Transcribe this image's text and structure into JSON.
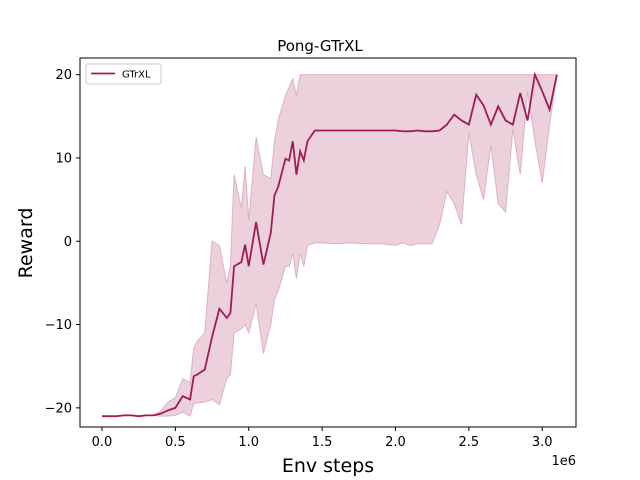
{
  "chart_data": {
    "type": "line",
    "title": "Pong-GTrXL",
    "xlabel": "Env steps",
    "ylabel": "Reward",
    "x_offset_label": "1e6",
    "xlim": [
      -0.15,
      3.23
    ],
    "ylim": [
      -22.3,
      22.0
    ],
    "xticks": [
      0.0,
      0.5,
      1.0,
      1.5,
      2.0,
      2.5,
      3.0
    ],
    "xtick_labels": [
      "0.0",
      "0.5",
      "1.0",
      "1.5",
      "2.0",
      "2.5",
      "3.0"
    ],
    "yticks": [
      -20,
      -10,
      0,
      10,
      20
    ],
    "ytick_labels": [
      "−20",
      "−10",
      "0",
      "10",
      "20"
    ],
    "grid": false,
    "legend_position": "top-left",
    "series": [
      {
        "name": "GTrXL",
        "color": "#a01a58",
        "band_color": "#d9a3bc",
        "x": [
          0.0,
          0.05,
          0.1,
          0.15,
          0.2,
          0.25,
          0.3,
          0.35,
          0.4,
          0.45,
          0.5,
          0.55,
          0.6,
          0.625,
          0.65,
          0.7,
          0.75,
          0.8,
          0.85,
          0.875,
          0.9,
          0.95,
          0.975,
          1.0,
          1.05,
          1.1,
          1.15,
          1.175,
          1.2,
          1.25,
          1.275,
          1.3,
          1.325,
          1.35,
          1.375,
          1.4,
          1.45,
          1.5,
          1.6,
          1.7,
          1.8,
          1.9,
          2.0,
          2.05,
          2.1,
          2.15,
          2.2,
          2.25,
          2.3,
          2.35,
          2.4,
          2.45,
          2.5,
          2.55,
          2.6,
          2.65,
          2.7,
          2.75,
          2.8,
          2.85,
          2.9,
          2.95,
          3.0,
          3.05,
          3.1
        ],
        "mean": [
          -21.0,
          -21.0,
          -21.0,
          -20.9,
          -20.9,
          -21.0,
          -20.9,
          -20.9,
          -20.7,
          -20.3,
          -20.0,
          -18.6,
          -19.0,
          -16.2,
          -16.0,
          -15.4,
          -11.5,
          -8.1,
          -9.2,
          -8.6,
          -3.0,
          -2.5,
          -0.4,
          -3.0,
          2.3,
          -2.8,
          1.0,
          5.5,
          6.5,
          9.9,
          9.7,
          12.0,
          8.0,
          10.8,
          9.7,
          12.0,
          13.3,
          13.3,
          13.3,
          13.3,
          13.3,
          13.3,
          13.3,
          13.2,
          13.2,
          13.3,
          13.2,
          13.2,
          13.3,
          14.0,
          15.2,
          14.5,
          14.0,
          17.6,
          16.3,
          14.0,
          16.2,
          14.5,
          14.0,
          17.8,
          14.5,
          20.0,
          18.0,
          15.8,
          20.0
        ],
        "upper": [
          -21.0,
          -21.0,
          -21.0,
          -20.9,
          -20.9,
          -21.0,
          -20.9,
          -20.9,
          -20.4,
          -19.3,
          -18.8,
          -16.5,
          -17.0,
          -12.8,
          -12.0,
          -11.0,
          0.0,
          -0.5,
          -5.0,
          -3.0,
          8.0,
          4.0,
          9.0,
          2.5,
          12.5,
          8.0,
          7.5,
          12.0,
          14.5,
          17.5,
          18.5,
          19.5,
          17.5,
          20.0,
          20.0,
          20.0,
          20.0,
          20.0,
          20.0,
          20.0,
          20.0,
          20.0,
          20.0,
          20.0,
          20.0,
          20.0,
          20.0,
          20.0,
          20.0,
          20.0,
          20.0,
          20.0,
          20.0,
          20.0,
          20.0,
          20.0,
          20.0,
          20.0,
          20.0,
          20.0,
          20.0,
          20.0,
          20.0,
          20.0,
          20.0
        ],
        "lower": [
          -21.0,
          -21.0,
          -21.0,
          -20.9,
          -20.9,
          -21.0,
          -20.9,
          -20.9,
          -21.0,
          -21.0,
          -20.9,
          -20.5,
          -21.0,
          -19.5,
          -19.4,
          -19.3,
          -19.0,
          -19.6,
          -16.5,
          -16.0,
          -11.0,
          -10.5,
          -10.0,
          -11.0,
          -7.5,
          -13.5,
          -10.0,
          -7.0,
          -6.0,
          -3.0,
          -3.0,
          -1.5,
          -4.5,
          -1.5,
          -3.0,
          -0.5,
          -0.2,
          -0.2,
          -0.3,
          -0.2,
          -0.3,
          -0.3,
          -0.5,
          -0.2,
          -0.5,
          -0.3,
          -0.3,
          -0.3,
          2.0,
          6.0,
          4.5,
          2.0,
          13.0,
          8.0,
          5.0,
          11.5,
          4.5,
          3.5,
          13.5,
          8.0,
          18.0,
          12.0,
          7.0,
          14.0,
          20.0
        ]
      }
    ]
  }
}
